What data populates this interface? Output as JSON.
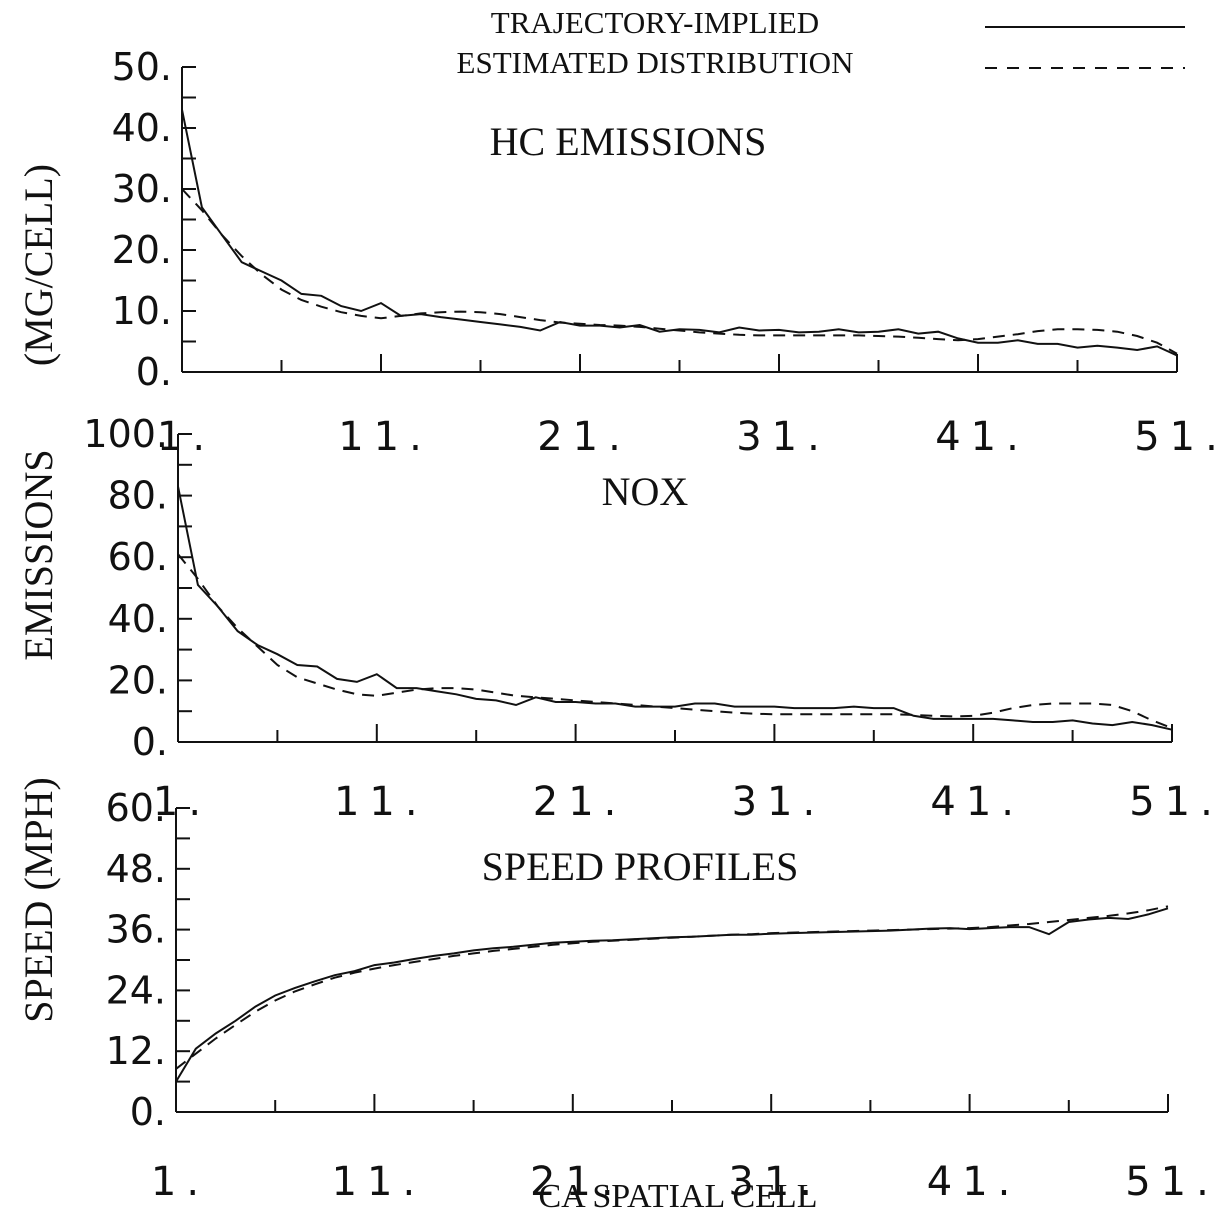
{
  "legend": {
    "placement": "top-right",
    "entries": [
      {
        "label": "TRAJECTORY-IMPLIED",
        "style": "solid"
      },
      {
        "label": "ESTIMATED DISTRIBUTION",
        "style": "dashed"
      }
    ]
  },
  "ylabels": {
    "top": "(MG/CELL)",
    "middle": "EMISSIONS",
    "bottom": "SPEED (MPH)"
  },
  "xlabel": "CA SPATIAL CELL",
  "x_tick_labels": [
    "1.",
    "11.",
    "21.",
    "31.",
    "41.",
    "51."
  ],
  "colors": {
    "line": "#111111",
    "background": "#ffffff"
  },
  "chart_data": [
    {
      "type": "line",
      "title": "HC EMISSIONS",
      "x": [
        1,
        2,
        3,
        4,
        5,
        6,
        7,
        8,
        9,
        10,
        11,
        12,
        13,
        14,
        15,
        16,
        17,
        18,
        19,
        20,
        21,
        22,
        23,
        24,
        25,
        26,
        27,
        28,
        29,
        30,
        31,
        32,
        33,
        34,
        35,
        36,
        37,
        38,
        39,
        40,
        41,
        42,
        43,
        44,
        45,
        46,
        47,
        48,
        49,
        50,
        51
      ],
      "xlim": [
        1,
        51
      ],
      "ylim": [
        0,
        50
      ],
      "y_tick_labels": [
        "0.",
        "10.",
        "20.",
        "30.",
        "40.",
        "50."
      ],
      "y_ticks": [
        0,
        10,
        20,
        30,
        40,
        50
      ],
      "series": [
        {
          "name": "TRAJECTORY-IMPLIED",
          "style": "solid",
          "values": [
            43,
            27,
            22.5,
            18,
            16.5,
            15,
            12.8,
            12.5,
            10.8,
            10,
            11.3,
            9.2,
            9.5,
            9,
            8.6,
            8.2,
            7.8,
            7.4,
            6.8,
            8.2,
            7.6,
            7.6,
            7.3,
            7.7,
            6.6,
            7,
            6.9,
            6.5,
            7.3,
            6.8,
            6.9,
            6.5,
            6.6,
            7,
            6.5,
            6.6,
            7,
            6.3,
            6.6,
            5.5,
            4.8,
            4.8,
            5.2,
            4.6,
            4.6,
            4,
            4.3,
            4,
            3.6,
            4.2,
            2.7
          ]
        },
        {
          "name": "ESTIMATED DISTRIBUTION",
          "style": "dashed",
          "values": [
            30,
            26.5,
            22.5,
            19,
            16,
            13.5,
            11.8,
            10.7,
            9.8,
            9.2,
            8.8,
            9.2,
            9.6,
            9.8,
            9.9,
            9.8,
            9.5,
            9.0,
            8.5,
            8.1,
            7.9,
            7.7,
            7.6,
            7.4,
            7.1,
            6.8,
            6.5,
            6.3,
            6.1,
            6.0,
            6.0,
            6.0,
            6.0,
            6.0,
            6.0,
            5.9,
            5.8,
            5.6,
            5.4,
            5.2,
            5.4,
            5.8,
            6.2,
            6.7,
            7.0,
            7.0,
            6.9,
            6.6,
            5.9,
            4.8,
            3.0
          ]
        }
      ]
    },
    {
      "type": "line",
      "title": "NOX",
      "x": [
        1,
        2,
        3,
        4,
        5,
        6,
        7,
        8,
        9,
        10,
        11,
        12,
        13,
        14,
        15,
        16,
        17,
        18,
        19,
        20,
        21,
        22,
        23,
        24,
        25,
        26,
        27,
        28,
        29,
        30,
        31,
        32,
        33,
        34,
        35,
        36,
        37,
        38,
        39,
        40,
        41,
        42,
        43,
        44,
        45,
        46,
        47,
        48,
        49,
        50,
        51
      ],
      "xlim": [
        1,
        51
      ],
      "ylim": [
        0,
        100
      ],
      "y_tick_labels": [
        "0.",
        "20.",
        "40.",
        "60.",
        "80.",
        "100."
      ],
      "y_ticks": [
        0,
        20,
        40,
        60,
        80,
        100
      ],
      "series": [
        {
          "name": "TRAJECTORY-IMPLIED",
          "style": "solid",
          "values": [
            83,
            51,
            44,
            36,
            31.5,
            28.5,
            25,
            24.5,
            20.5,
            19.5,
            22,
            17.5,
            17.5,
            16.5,
            15.5,
            14,
            13.5,
            12,
            14.5,
            13,
            13,
            12.5,
            12.5,
            11.5,
            11.5,
            11.5,
            12.5,
            12.5,
            11.5,
            11.5,
            11.5,
            11,
            11,
            11,
            11.5,
            11,
            11,
            8.5,
            7.5,
            7.5,
            7.5,
            7.5,
            7,
            6.5,
            6.5,
            7,
            6,
            5.5,
            6.5,
            5.5,
            4
          ]
        },
        {
          "name": "ESTIMATED DISTRIBUTION",
          "style": "dashed",
          "values": [
            61,
            53,
            44,
            37,
            31,
            25,
            21,
            19,
            17,
            15.5,
            15,
            16,
            17,
            17.5,
            17.5,
            17,
            16,
            15,
            14.5,
            14,
            13.5,
            13,
            12.5,
            12,
            11.5,
            11,
            10.5,
            10,
            9.5,
            9.2,
            9,
            9,
            9,
            9,
            9,
            9,
            9,
            8.8,
            8.5,
            8.3,
            8.5,
            9.5,
            11,
            12,
            12.5,
            12.5,
            12.5,
            12,
            10,
            7,
            4.5
          ]
        }
      ]
    },
    {
      "type": "line",
      "title": "SPEED PROFILES",
      "x": [
        1,
        2,
        3,
        4,
        5,
        6,
        7,
        8,
        9,
        10,
        11,
        12,
        13,
        14,
        15,
        16,
        17,
        18,
        19,
        20,
        21,
        22,
        23,
        24,
        25,
        26,
        27,
        28,
        29,
        30,
        31,
        32,
        33,
        34,
        35,
        36,
        37,
        38,
        39,
        40,
        41,
        42,
        43,
        44,
        45,
        46,
        47,
        48,
        49,
        50,
        51
      ],
      "xlim": [
        1,
        51
      ],
      "ylim": [
        0,
        60
      ],
      "y_tick_labels": [
        "0.",
        "12.",
        "24.",
        "36.",
        "48.",
        "60."
      ],
      "y_ticks": [
        0,
        12,
        24,
        36,
        48,
        60
      ],
      "series": [
        {
          "name": "TRAJECTORY-IMPLIED",
          "style": "solid",
          "values": [
            6,
            12.5,
            15.5,
            18,
            20.8,
            23,
            24.5,
            25.8,
            27,
            27.8,
            29,
            29.5,
            30.2,
            30.8,
            31.3,
            31.9,
            32.3,
            32.6,
            33,
            33.4,
            33.6,
            33.8,
            33.9,
            34.1,
            34.3,
            34.5,
            34.6,
            34.8,
            35,
            35,
            35.2,
            35.3,
            35.4,
            35.5,
            35.6,
            35.7,
            35.8,
            36,
            36.2,
            36.3,
            36.1,
            36.3,
            36.5,
            36.5,
            35.1,
            37.5,
            38,
            38.3,
            38.1,
            39,
            40.2
          ]
        },
        {
          "name": "ESTIMATED DISTRIBUTION",
          "style": "dashed",
          "values": [
            8.5,
            11.5,
            14.5,
            17.2,
            19.8,
            22,
            23.8,
            25.2,
            26.5,
            27.5,
            28.3,
            29,
            29.6,
            30.2,
            30.8,
            31.3,
            31.8,
            32.2,
            32.6,
            33,
            33.3,
            33.6,
            33.8,
            34,
            34.2,
            34.4,
            34.6,
            34.8,
            35,
            35.1,
            35.3,
            35.4,
            35.5,
            35.6,
            35.7,
            35.8,
            35.9,
            36,
            36.1,
            36.2,
            36.3,
            36.5,
            36.8,
            37.1,
            37.5,
            37.9,
            38.3,
            38.7,
            39.2,
            39.8,
            40.6
          ]
        }
      ]
    }
  ]
}
